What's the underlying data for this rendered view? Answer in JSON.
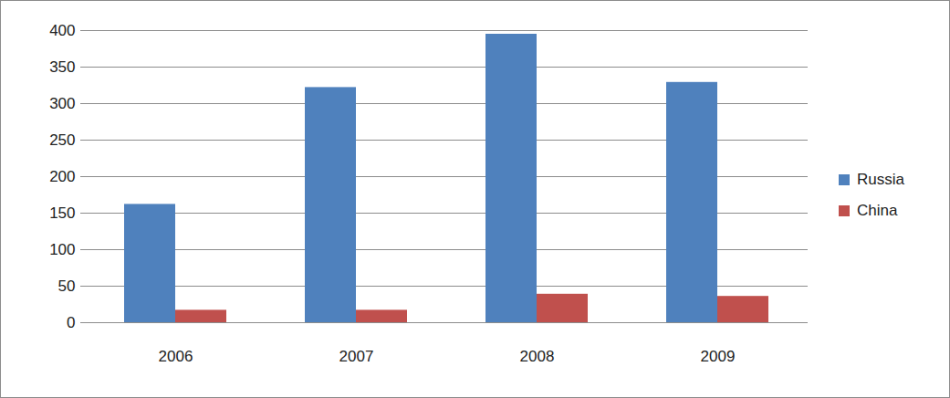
{
  "chart_data": {
    "type": "bar",
    "categories": [
      "2006",
      "2007",
      "2008",
      "2009"
    ],
    "series": [
      {
        "name": "Russia",
        "color": "#4f81bd",
        "values": [
          162,
          322,
          395,
          329
        ]
      },
      {
        "name": "China",
        "color": "#c0504d",
        "values": [
          17,
          17,
          39,
          36
        ]
      }
    ],
    "ylim": [
      0,
      400
    ],
    "yticks": [
      0,
      50,
      100,
      150,
      200,
      250,
      300,
      350,
      400
    ],
    "grid": true,
    "legend": "right",
    "data_labels": false
  }
}
